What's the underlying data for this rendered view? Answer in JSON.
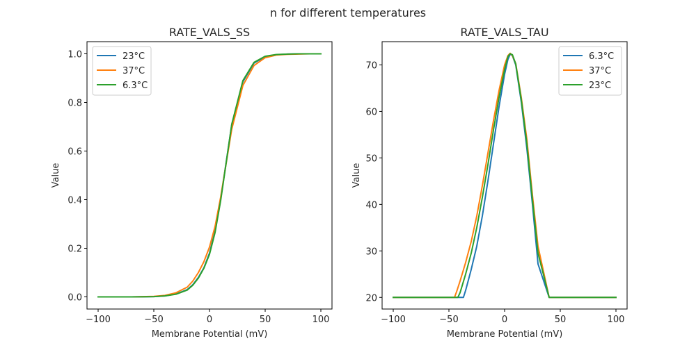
{
  "figure": {
    "suptitle": "n for different temperatures"
  },
  "chart_data": [
    {
      "type": "line",
      "title": "RATE_VALS_SS",
      "xlabel": "Membrane Potential (mV)",
      "ylabel": "Value",
      "xlim": [
        -110,
        110
      ],
      "ylim": [
        -0.05,
        1.05
      ],
      "xticks": [
        -100,
        -50,
        0,
        50,
        100
      ],
      "xtick_labels": [
        "−100",
        "−50",
        "0",
        "50",
        "100"
      ],
      "yticks": [
        0.0,
        0.2,
        0.4,
        0.6,
        0.8,
        1.0
      ],
      "ytick_labels": [
        "0.0",
        "0.2",
        "0.4",
        "0.6",
        "0.8",
        "1.0"
      ],
      "grid": false,
      "legend_position": "top-left",
      "x": [
        -100,
        -90,
        -80,
        -70,
        -60,
        -50,
        -40,
        -30,
        -20,
        -15,
        -10,
        -5,
        0,
        5,
        10,
        20,
        30,
        40,
        50,
        60,
        70,
        80,
        90,
        100
      ],
      "series": [
        {
          "name": "23°C",
          "color": "#1f77b4",
          "values": [
            0.0,
            0.0,
            0.0,
            0.0,
            0.0005,
            0.001,
            0.004,
            0.012,
            0.03,
            0.05,
            0.08,
            0.12,
            0.18,
            0.27,
            0.4,
            0.71,
            0.885,
            0.962,
            0.988,
            0.996,
            0.999,
            1.0,
            1.0,
            1.0
          ]
        },
        {
          "name": "37°C",
          "color": "#ff7f0e",
          "values": [
            0.0,
            0.0,
            0.0,
            0.0,
            0.001,
            0.002,
            0.006,
            0.017,
            0.04,
            0.065,
            0.1,
            0.145,
            0.205,
            0.29,
            0.41,
            0.69,
            0.87,
            0.952,
            0.984,
            0.995,
            0.998,
            0.999,
            1.0,
            1.0
          ]
        },
        {
          "name": "6.3°C",
          "color": "#2ca02c",
          "values": [
            0.0,
            0.0,
            0.0,
            0.0,
            0.0005,
            0.001,
            0.004,
            0.011,
            0.028,
            0.048,
            0.077,
            0.118,
            0.175,
            0.265,
            0.395,
            0.71,
            0.89,
            0.965,
            0.99,
            0.997,
            0.999,
            1.0,
            1.0,
            1.0
          ]
        }
      ]
    },
    {
      "type": "line",
      "title": "RATE_VALS_TAU",
      "xlabel": "Membrane Potential (mV)",
      "ylabel": "Value",
      "xlim": [
        -110,
        110
      ],
      "ylim": [
        17.5,
        75
      ],
      "xticks": [
        -100,
        -50,
        0,
        50,
        100
      ],
      "xtick_labels": [
        "−100",
        "−50",
        "0",
        "50",
        "100"
      ],
      "yticks": [
        20,
        30,
        40,
        50,
        60,
        70
      ],
      "ytick_labels": [
        "20",
        "30",
        "40",
        "50",
        "60",
        "70"
      ],
      "grid": false,
      "legend_position": "top-right",
      "series": [
        {
          "name": "6.3°C",
          "color": "#1f77b4",
          "x": [
            -100,
            -40,
            -37,
            -35,
            -30,
            -25,
            -20,
            -15,
            -10,
            -5,
            0,
            3,
            5,
            7,
            10,
            15,
            20,
            25,
            30,
            35,
            40,
            50,
            100
          ],
          "values": [
            20,
            20,
            20,
            21.5,
            26,
            31,
            37.5,
            45,
            53,
            61,
            68,
            71.2,
            72.3,
            72,
            70,
            62,
            52,
            40,
            27.2,
            23.6,
            20,
            20,
            20
          ]
        },
        {
          "name": "37°C",
          "color": "#ff7f0e",
          "x": [
            -100,
            -45,
            -43,
            -40,
            -35,
            -30,
            -25,
            -20,
            -15,
            -10,
            -5,
            0,
            3,
            5,
            7,
            10,
            15,
            20,
            25,
            30,
            35,
            40,
            50,
            100
          ],
          "values": [
            20,
            20,
            21.3,
            23.5,
            27.5,
            32,
            37.5,
            44,
            51,
            58,
            64.5,
            70,
            72,
            72.5,
            72,
            70.3,
            63,
            54,
            42,
            31,
            25.5,
            20,
            20,
            20
          ]
        },
        {
          "name": "23°C",
          "color": "#2ca02c",
          "x": [
            -100,
            -42,
            -40,
            -35,
            -30,
            -25,
            -20,
            -15,
            -10,
            -5,
            0,
            3,
            5,
            7,
            10,
            15,
            20,
            25,
            30,
            35,
            40,
            50,
            100
          ],
          "values": [
            20,
            20,
            21,
            25,
            29.5,
            35,
            41.5,
            48.5,
            56,
            63,
            69,
            71.8,
            72.4,
            72.2,
            70.2,
            62.5,
            53,
            41,
            29.5,
            24.8,
            20,
            20,
            20
          ]
        }
      ]
    }
  ]
}
